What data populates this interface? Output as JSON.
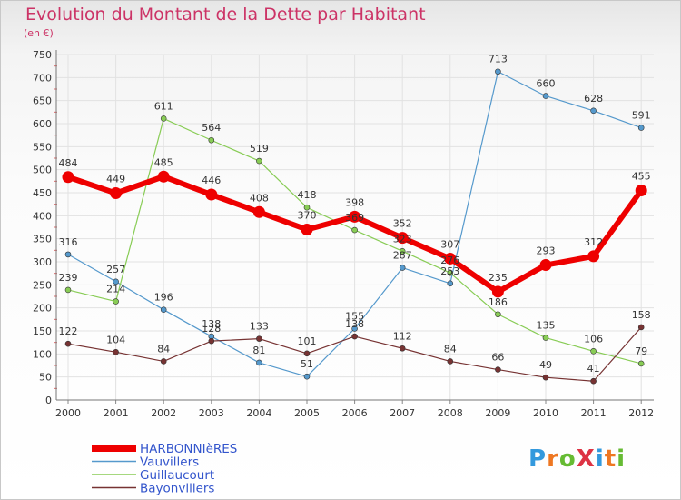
{
  "title": "Evolution du Montant de la Dette par Habitant",
  "subtitle": "(en €)",
  "logo": {
    "text": "ProXiti",
    "letter_colors": [
      "#3399dd",
      "#ee7722",
      "#66bb33",
      "#dd3344",
      "#3399dd",
      "#ee7722",
      "#66bb33"
    ]
  },
  "chart_data": {
    "type": "line",
    "title": "Evolution du Montant de la Dette par Habitant",
    "ylabel": "(en €)",
    "ylim": [
      0,
      750
    ],
    "y_ticks": [
      0,
      50,
      100,
      150,
      200,
      250,
      300,
      350,
      400,
      450,
      500,
      550,
      600,
      650,
      700,
      750
    ],
    "x": [
      "2000",
      "2001",
      "2002",
      "2003",
      "2004",
      "2005",
      "2006",
      "2007",
      "2008",
      "2009",
      "2010",
      "2011",
      "2012"
    ],
    "grid": true,
    "legend_position": "bottom-left",
    "series": [
      {
        "name": "HARBONNIèRES",
        "color": "#ee0000",
        "values": [
          484,
          449,
          485,
          446,
          408,
          370,
          398,
          352,
          307,
          235,
          293,
          312,
          455
        ]
      },
      {
        "name": "Vauvillers",
        "color": "#5599cc",
        "values": [
          316,
          257,
          196,
          138,
          81,
          51,
          155,
          287,
          253,
          713,
          660,
          628,
          591
        ]
      },
      {
        "name": "Guillaucourt",
        "color": "#88cc55",
        "values": [
          239,
          214,
          611,
          564,
          519,
          418,
          369,
          323,
          276,
          186,
          135,
          106,
          79
        ]
      },
      {
        "name": "Bayonvillers",
        "color": "#773333",
        "values": [
          122,
          104,
          84,
          128,
          133,
          101,
          138,
          112,
          84,
          66,
          49,
          41,
          158
        ]
      }
    ]
  }
}
